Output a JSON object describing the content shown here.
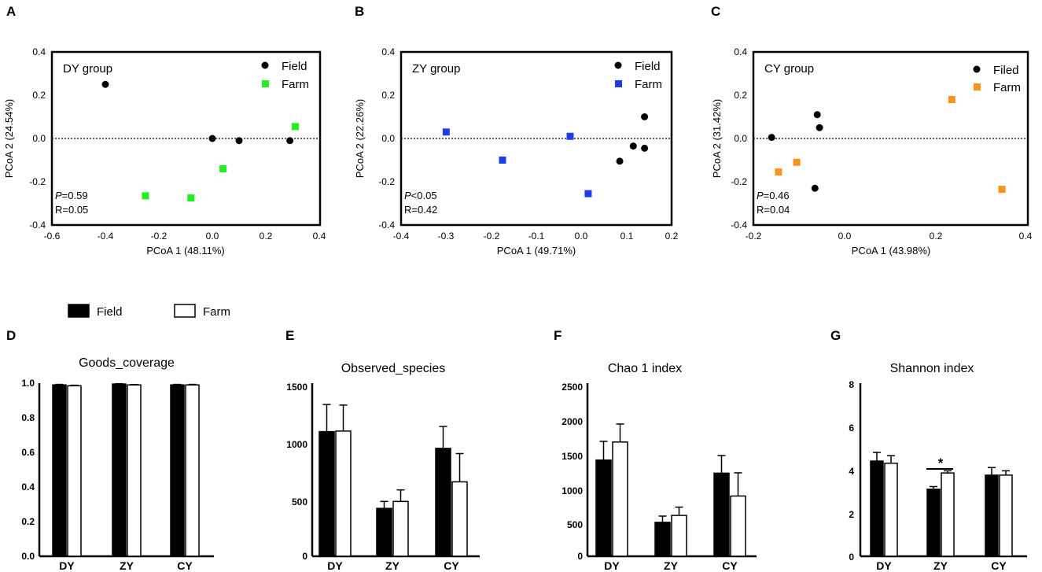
{
  "pcoa_panels": [
    {
      "letter": "A",
      "group_label": "DY group",
      "x_axis_label": "PCoA 1 (48.11%)",
      "y_axis_label": "PCoA 2 (24.54%)",
      "x_ticks": [
        "-0.6",
        "-0.4",
        "-0.2",
        "0.0",
        "0.2",
        "0.4"
      ],
      "y_ticks": [
        "0.4",
        "0.2",
        "0.0",
        "-0.2",
        "-0.4"
      ],
      "legend": [
        "Field",
        "Farm"
      ],
      "p_prefix": "P",
      "p_text": "=0.59",
      "r_text": "R=0.05"
    },
    {
      "letter": "B",
      "group_label": "ZY group",
      "x_axis_label": "PCoA 1 (49.71%)",
      "y_axis_label": "PCoA 2 (22.26%)",
      "x_ticks": [
        "-0.4",
        "-0.3",
        "-0.2",
        "-0.1",
        "0.0",
        "0.1",
        "0.2"
      ],
      "y_ticks": [
        "0.4",
        "0.2",
        "0.0",
        "-0.2",
        "-0.4"
      ],
      "legend": [
        "Field",
        "Farm"
      ],
      "p_prefix": "P",
      "p_text": "<0.05",
      "r_text": "R=0.42"
    },
    {
      "letter": "C",
      "group_label": "CY group",
      "x_axis_label": "PCoA 1 (43.98%)",
      "y_axis_label": "PCoA 2 (31.42%)",
      "x_ticks": [
        "-0.2",
        "0.0",
        "0.2",
        "0.4"
      ],
      "y_ticks": [
        "0.4",
        "0.2",
        "0.0",
        "-0.2",
        "-0.4"
      ],
      "legend": [
        "Filed",
        "Farm"
      ],
      "p_prefix": "P",
      "p_text": "=0.46",
      "r_text": "R=0.04"
    }
  ],
  "bar_legend": {
    "field_label": "Field",
    "farm_label": "Farm"
  },
  "bar_panels": [
    {
      "letter": "D",
      "title": "Goods_coverage",
      "y_ticks": [
        "1.0",
        "0.8",
        "0.6",
        "0.4",
        "0.2",
        "0.0"
      ],
      "categories": [
        "DY",
        "ZY",
        "CY"
      ]
    },
    {
      "letter": "E",
      "title": "Observed_species",
      "y_ticks": [
        "1500",
        "1000",
        "500",
        "0"
      ],
      "categories": [
        "DY",
        "ZY",
        "CY"
      ]
    },
    {
      "letter": "F",
      "title": "Chao 1  index",
      "y_ticks": [
        "2500",
        "2000",
        "1500",
        "1000",
        "500",
        "0"
      ],
      "categories": [
        "DY",
        "ZY",
        "CY"
      ]
    },
    {
      "letter": "G",
      "title": "Shannon  index",
      "y_ticks": [
        "8",
        "6",
        "4",
        "2",
        "0"
      ],
      "categories": [
        "DY",
        "ZY",
        "CY"
      ],
      "significance": "*"
    }
  ],
  "chart_data": [
    {
      "type": "scatter",
      "title": "DY group",
      "xlabel": "PCoA 1 (48.11%)",
      "ylabel": "PCoA 2 (24.54%)",
      "xlim": [
        -0.6,
        0.4
      ],
      "ylim": [
        -0.4,
        0.4
      ],
      "reference_line": 0,
      "series": [
        {
          "name": "Field",
          "color": "#000000",
          "marker": "circle",
          "points": [
            [
              -0.4,
              0.25
            ],
            [
              0.0,
              0.0
            ],
            [
              0.1,
              -0.01
            ],
            [
              0.29,
              -0.01
            ]
          ]
        },
        {
          "name": "Farm",
          "color": "#22ee22",
          "marker": "square",
          "points": [
            [
              0.31,
              0.055
            ],
            [
              0.04,
              -0.14
            ],
            [
              -0.08,
              -0.275
            ],
            [
              -0.25,
              -0.265
            ]
          ]
        }
      ],
      "stats": {
        "P": "0.59",
        "R": "0.05"
      }
    },
    {
      "type": "scatter",
      "title": "ZY group",
      "xlabel": "PCoA 1 (49.71%)",
      "ylabel": "PCoA 2 (22.26%)",
      "xlim": [
        -0.4,
        0.2
      ],
      "ylim": [
        -0.4,
        0.4
      ],
      "reference_line": 0,
      "series": [
        {
          "name": "Field",
          "color": "#000000",
          "marker": "circle",
          "points": [
            [
              0.14,
              0.1
            ],
            [
              0.115,
              -0.035
            ],
            [
              0.14,
              -0.045
            ],
            [
              0.085,
              -0.105
            ]
          ]
        },
        {
          "name": "Farm",
          "color": "#1f3de6",
          "marker": "square",
          "points": [
            [
              -0.3,
              0.03
            ],
            [
              -0.025,
              0.01
            ],
            [
              -0.175,
              -0.1
            ],
            [
              0.015,
              -0.255
            ]
          ]
        }
      ],
      "stats": {
        "P": "<0.05",
        "R": "0.42"
      }
    },
    {
      "type": "scatter",
      "title": "CY group",
      "xlabel": "PCoA 1 (43.98%)",
      "ylabel": "PCoA 2 (31.42%)",
      "xlim": [
        -0.2,
        0.4
      ],
      "ylim": [
        -0.4,
        0.4
      ],
      "reference_line": 0,
      "series": [
        {
          "name": "Filed",
          "color": "#000000",
          "marker": "circle",
          "points": [
            [
              -0.06,
              0.11
            ],
            [
              -0.055,
              0.05
            ],
            [
              -0.16,
              0.005
            ],
            [
              -0.065,
              -0.23
            ]
          ]
        },
        {
          "name": "Farm",
          "color": "#f7941d",
          "marker": "square",
          "points": [
            [
              0.235,
              0.18
            ],
            [
              0.345,
              -0.235
            ],
            [
              -0.145,
              -0.155
            ],
            [
              -0.105,
              -0.11
            ]
          ]
        }
      ],
      "stats": {
        "P": "0.46",
        "R": "0.04"
      }
    },
    {
      "type": "bar",
      "title": "Goods_coverage",
      "categories": [
        "DY",
        "ZY",
        "CY"
      ],
      "ylim": [
        0,
        1.0
      ],
      "series": [
        {
          "name": "Field",
          "color": "#000000",
          "values": [
            0.99,
            0.995,
            0.99
          ],
          "errors": [
            0.003,
            0.002,
            0.003
          ]
        },
        {
          "name": "Farm",
          "color": "#ffffff",
          "values": [
            0.985,
            0.99,
            0.99
          ],
          "errors": [
            0.003,
            0.002,
            0.003
          ]
        }
      ]
    },
    {
      "type": "bar",
      "title": "Observed_species",
      "categories": [
        "DY",
        "ZY",
        "CY"
      ],
      "ylim": [
        0,
        1500
      ],
      "series": [
        {
          "name": "Field",
          "color": "#000000",
          "values": [
            1080,
            415,
            935
          ],
          "errors": [
            235,
            60,
            190
          ]
        },
        {
          "name": "Farm",
          "color": "#ffffff",
          "values": [
            1085,
            475,
            645
          ],
          "errors": [
            225,
            100,
            245
          ]
        }
      ]
    },
    {
      "type": "bar",
      "title": "Chao 1  index",
      "categories": [
        "DY",
        "ZY",
        "CY"
      ],
      "ylim": [
        0,
        2500
      ],
      "series": [
        {
          "name": "Field",
          "color": "#000000",
          "values": [
            1390,
            490,
            1200
          ],
          "errors": [
            270,
            90,
            255
          ]
        },
        {
          "name": "Farm",
          "color": "#ffffff",
          "values": [
            1650,
            590,
            870
          ],
          "errors": [
            260,
            120,
            335
          ]
        }
      ]
    },
    {
      "type": "bar",
      "title": "Shannon  index",
      "categories": [
        "DY",
        "ZY",
        "CY"
      ],
      "ylim": [
        0,
        8
      ],
      "series": [
        {
          "name": "Field",
          "color": "#000000",
          "values": [
            4.4,
            3.1,
            3.75
          ],
          "errors": [
            0.4,
            0.12,
            0.35
          ]
        },
        {
          "name": "Farm",
          "color": "#ffffff",
          "values": [
            4.3,
            3.85,
            3.75
          ],
          "errors": [
            0.35,
            0.1,
            0.2
          ]
        }
      ],
      "significance": [
        {
          "category": "ZY",
          "label": "*"
        }
      ]
    }
  ]
}
